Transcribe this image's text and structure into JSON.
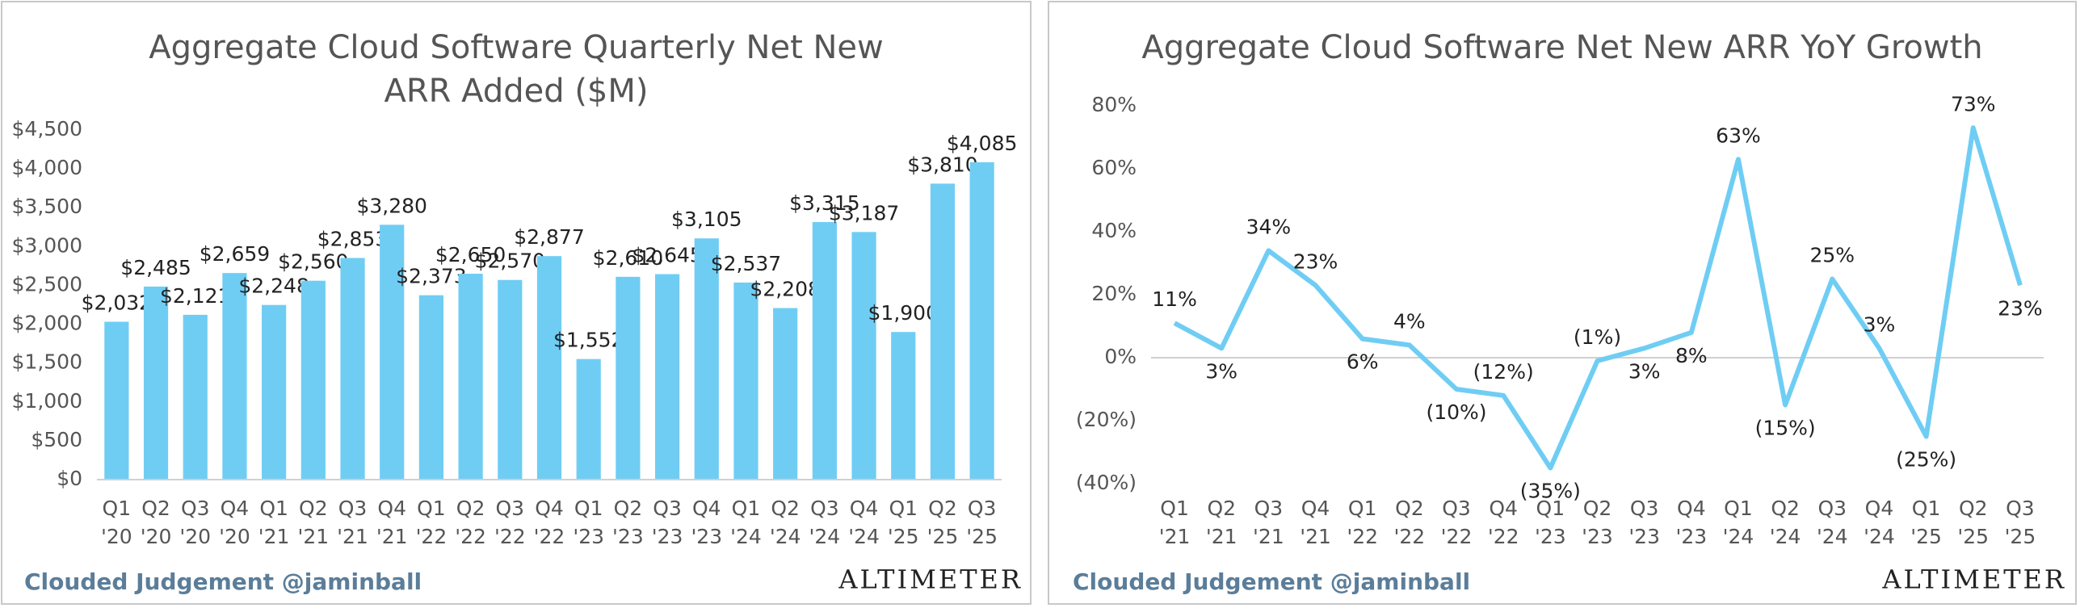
{
  "chart_data": [
    {
      "type": "bar",
      "title": "Aggregate Cloud Software Quarterly Net New ARR Added ($M)",
      "categories": [
        "Q1 '20",
        "Q2 '20",
        "Q3 '20",
        "Q4 '20",
        "Q1 '21",
        "Q2 '21",
        "Q3 '21",
        "Q4 '21",
        "Q1 '22",
        "Q2 '22",
        "Q3 '22",
        "Q4 '22",
        "Q1 '23",
        "Q2 '23",
        "Q3 '23",
        "Q4 '23",
        "Q1 '24",
        "Q2 '24",
        "Q3 '24",
        "Q4 '24",
        "Q1 '25",
        "Q2 '25",
        "Q3 '25"
      ],
      "values": [
        2032,
        2485,
        2121,
        2659,
        2248,
        2560,
        2853,
        3280,
        2373,
        2650,
        2570,
        2877,
        1552,
        2610,
        2645,
        3105,
        2537,
        2208,
        3315,
        3187,
        1900,
        3810,
        4085
      ],
      "value_labels": [
        "$2,032",
        "$2,485",
        "$2,121",
        "$2,659",
        "$2,248",
        "$2,560",
        "$2,853",
        "$3,280",
        "$2,373",
        "$2,650",
        "$2,570",
        "$2,877",
        "$1,552",
        "$2,610",
        "$2,645",
        "$3,105",
        "$2,537",
        "$2,208",
        "$3,315",
        "$3,187",
        "$1,900",
        "$3,810",
        "$4,085"
      ],
      "color": "#6fcdf4",
      "ylim": [
        0,
        4500
      ],
      "yticks": [
        {
          "value": 0,
          "label": "$0"
        },
        {
          "value": 500,
          "label": "$500"
        },
        {
          "value": 1000,
          "label": "$1,000"
        },
        {
          "value": 1500,
          "label": "$1,500"
        },
        {
          "value": 2000,
          "label": "$2,000"
        },
        {
          "value": 2500,
          "label": "$2,500"
        },
        {
          "value": 3000,
          "label": "$3,000"
        },
        {
          "value": 3500,
          "label": "$3,500"
        },
        {
          "value": 4000,
          "label": "$4,000"
        },
        {
          "value": 4500,
          "label": "$4,500"
        }
      ],
      "footer": "Clouded Judgement @jaminball",
      "logo": "ALTIMETER"
    },
    {
      "type": "line",
      "title": "Aggregate Cloud Software Net New ARR YoY Growth",
      "categories": [
        "Q1 '21",
        "Q2 '21",
        "Q3 '21",
        "Q4 '21",
        "Q1 '22",
        "Q2 '22",
        "Q3 '22",
        "Q4 '22",
        "Q1 '23",
        "Q2 '23",
        "Q3 '23",
        "Q4 '23",
        "Q1 '24",
        "Q2 '24",
        "Q3 '24",
        "Q4 '24",
        "Q1 '25",
        "Q2 '25",
        "Q3 '25"
      ],
      "values": [
        11,
        3,
        34,
        23,
        6,
        4,
        -10,
        -12,
        -35,
        -1,
        3,
        8,
        63,
        -15,
        25,
        3,
        -25,
        73,
        23
      ],
      "value_labels": [
        "11%",
        "3%",
        "34%",
        "23%",
        "6%",
        "4%",
        "(10%)",
        "(12%)",
        "(35%)",
        "(1%)",
        "3%",
        "8%",
        "63%",
        "(15%)",
        "25%",
        "3%",
        "(25%)",
        "73%",
        "23%"
      ],
      "color": "#6fcdf4",
      "ylim": [
        -40,
        80
      ],
      "yticks": [
        {
          "value": -40,
          "label": "(40%)"
        },
        {
          "value": -20,
          "label": "(20%)"
        },
        {
          "value": 0,
          "label": "0%"
        },
        {
          "value": 20,
          "label": "20%"
        },
        {
          "value": 40,
          "label": "40%"
        },
        {
          "value": 60,
          "label": "60%"
        },
        {
          "value": 80,
          "label": "80%"
        }
      ],
      "footer": "Clouded Judgement @jaminball",
      "logo": "ALTIMETER"
    }
  ]
}
